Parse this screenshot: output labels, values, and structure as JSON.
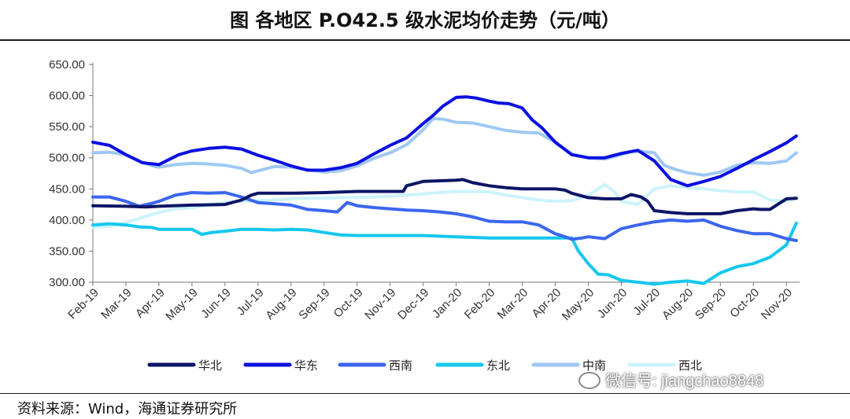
{
  "page": {
    "title": "图 各地区 P.O42.5 级水泥均价走势（元/吨）",
    "source": "资料来源：Wind，海通证券研究所",
    "watermark": "微信号: jiangchao8848"
  },
  "chart_data": {
    "type": "line",
    "title": "图 各地区 P.O42.5 级水泥均价走势（元/吨）",
    "xlabel": "",
    "ylabel": "",
    "ylim": [
      300,
      650
    ],
    "yticks": [
      "650.00",
      "600.00",
      "550.00",
      "500.00",
      "450.00",
      "400.00",
      "350.00",
      "300.00"
    ],
    "ytick_values": [
      650,
      600,
      550,
      500,
      450,
      400,
      350,
      300
    ],
    "x_range": [
      0,
      21.4
    ],
    "xticks": [
      "Feb-19",
      "Mar-19",
      "Apr-19",
      "May-19",
      "Jun-19",
      "Jul-19",
      "Aug-19",
      "Sep-19",
      "Oct-19",
      "Nov-19",
      "Dec-19",
      "Jan-20",
      "Feb-20",
      "Mar-20",
      "Apr-20",
      "May-20",
      "Jun-20",
      "Jul-20",
      "Aug-20",
      "Sep-20",
      "Oct-20",
      "Nov-20"
    ],
    "legend_position": "bottom",
    "series": [
      {
        "name": "华北",
        "color": "#0d1566",
        "x": [
          0,
          1,
          1.6,
          2,
          3,
          4,
          4.5,
          4.8,
          5,
          6,
          7,
          8,
          9,
          9.4,
          9.5,
          10,
          10.5,
          11,
          11.2,
          11.5,
          12,
          12.5,
          13,
          13.5,
          14,
          14.3,
          14.5,
          15,
          15.5,
          16,
          16.3,
          16.6,
          16.8,
          17,
          17.5,
          18,
          18.5,
          19,
          19.5,
          20,
          20.2,
          20.5,
          21,
          21.3
        ],
        "y": [
          423,
          422,
          421,
          422,
          424,
          425,
          432,
          440,
          443,
          443,
          444,
          446,
          446,
          446,
          455,
          462,
          463,
          464,
          465,
          460,
          455,
          452,
          450,
          450,
          450,
          448,
          443,
          436,
          434,
          434,
          441,
          437,
          430,
          415,
          412,
          410,
          410,
          410,
          415,
          418,
          417,
          417,
          434,
          435
        ]
      },
      {
        "name": "华东",
        "color": "#0a10e0",
        "x": [
          0,
          0.5,
          1,
          1.5,
          2,
          2.3,
          2.6,
          3,
          3.5,
          4,
          4.5,
          5,
          5.5,
          6,
          6.5,
          7,
          7.5,
          8,
          8.5,
          9,
          9.5,
          10,
          10.3,
          10.6,
          11,
          11.3,
          11.6,
          12,
          12.3,
          12.6,
          13,
          13.3,
          13.6,
          14,
          14.5,
          15,
          15.5,
          16,
          16.5,
          17,
          17.5,
          18,
          18.5,
          19,
          19.5,
          20,
          20.5,
          21,
          21.3
        ],
        "y": [
          525,
          520,
          505,
          492,
          489,
          497,
          505,
          511,
          515,
          517,
          514,
          504,
          496,
          487,
          480,
          480,
          484,
          491,
          506,
          520,
          532,
          555,
          568,
          583,
          597,
          598,
          596,
          591,
          588,
          587,
          580,
          561,
          548,
          525,
          505,
          500,
          500,
          507,
          512,
          495,
          465,
          455,
          462,
          470,
          483,
          497,
          510,
          524,
          535
        ]
      },
      {
        "name": "西南",
        "color": "#3b66ee",
        "x": [
          0,
          0.5,
          1,
          1.4,
          1.8,
          2,
          2.5,
          3,
          3.5,
          4,
          4.5,
          5,
          5.5,
          6,
          6.5,
          7,
          7.4,
          7.7,
          8,
          8.5,
          9,
          9.5,
          10,
          10.5,
          11,
          11.5,
          12,
          12.5,
          13,
          13.5,
          14,
          14.3,
          14.5,
          14.8,
          15,
          15.5,
          16,
          16.5,
          17,
          17.5,
          18,
          18.5,
          19,
          19.5,
          20,
          20.5,
          21,
          21.3
        ],
        "y": [
          437,
          437,
          430,
          422,
          427,
          430,
          440,
          444,
          443,
          444,
          437,
          428,
          426,
          424,
          417,
          415,
          413,
          428,
          423,
          420,
          418,
          416,
          415,
          413,
          410,
          405,
          398,
          397,
          397,
          392,
          378,
          373,
          369,
          371,
          373,
          370,
          386,
          392,
          397,
          400,
          398,
          400,
          390,
          383,
          378,
          378,
          370,
          367
        ]
      },
      {
        "name": "东北",
        "color": "#16c7ee",
        "x": [
          0,
          0.5,
          1,
          1.4,
          1.8,
          2,
          2.5,
          3,
          3.3,
          3.6,
          4,
          4.5,
          5,
          5.5,
          6,
          6.5,
          7,
          7.5,
          8,
          9,
          10,
          11,
          12,
          13,
          14,
          14.5,
          14.7,
          15,
          15.3,
          15.6,
          16,
          16.5,
          17,
          17.5,
          18,
          18.5,
          19,
          19.5,
          20,
          20.5,
          21,
          21.3
        ],
        "y": [
          392,
          394,
          392,
          389,
          388,
          385,
          385,
          385,
          377,
          380,
          382,
          385,
          385,
          384,
          385,
          384,
          380,
          376,
          375,
          375,
          375,
          373,
          371,
          371,
          371,
          371,
          350,
          330,
          313,
          312,
          303,
          300,
          297,
          300,
          302,
          298,
          315,
          325,
          330,
          340,
          360,
          395
        ]
      },
      {
        "name": "中南",
        "color": "#9fc8f4",
        "x": [
          0,
          0.5,
          1,
          1.5,
          1.8,
          2,
          2.5,
          3,
          3.5,
          4,
          4.5,
          4.8,
          5,
          5.5,
          6,
          6.5,
          7,
          7.5,
          8,
          8.5,
          9,
          9.5,
          10,
          10.3,
          10.6,
          11,
          11.5,
          12,
          12.5,
          13,
          13.5,
          14,
          14.5,
          15,
          15.5,
          16,
          16.3,
          16.6,
          17,
          17.3,
          17.6,
          18,
          18.5,
          19,
          19.5,
          20,
          20.5,
          21,
          21.3
        ],
        "y": [
          508,
          509,
          505,
          493,
          487,
          485,
          489,
          491,
          490,
          488,
          483,
          476,
          479,
          486,
          485,
          481,
          477,
          479,
          487,
          499,
          508,
          521,
          545,
          563,
          562,
          557,
          556,
          550,
          544,
          541,
          540,
          525,
          506,
          500,
          498,
          505,
          510,
          510,
          508,
          488,
          482,
          476,
          472,
          477,
          488,
          492,
          491,
          495,
          508
        ]
      },
      {
        "name": "西北",
        "color": "#ccf3fb",
        "x": [
          0,
          0.5,
          1,
          1.5,
          2,
          2.5,
          3,
          3.5,
          4,
          4.5,
          5,
          5.5,
          6,
          6.5,
          7,
          7.5,
          8,
          8.5,
          9,
          9.5,
          10,
          10.5,
          11,
          11.5,
          12,
          12.5,
          13,
          13.5,
          14,
          14.5,
          15,
          15.3,
          15.5,
          15.8,
          16,
          16.5,
          17,
          17.5,
          18,
          18.5,
          19,
          19.5,
          20,
          20.5,
          21,
          21.3
        ],
        "y": [
          388,
          390,
          396,
          404,
          412,
          418,
          420,
          424,
          428,
          430,
          431,
          432,
          434,
          435,
          435,
          436,
          436,
          437,
          438,
          440,
          442,
          444,
          446,
          446,
          445,
          440,
          436,
          432,
          430,
          431,
          440,
          450,
          457,
          445,
          430,
          425,
          450,
          455,
          452,
          450,
          447,
          445,
          445,
          432,
          430,
          436
        ]
      }
    ]
  }
}
